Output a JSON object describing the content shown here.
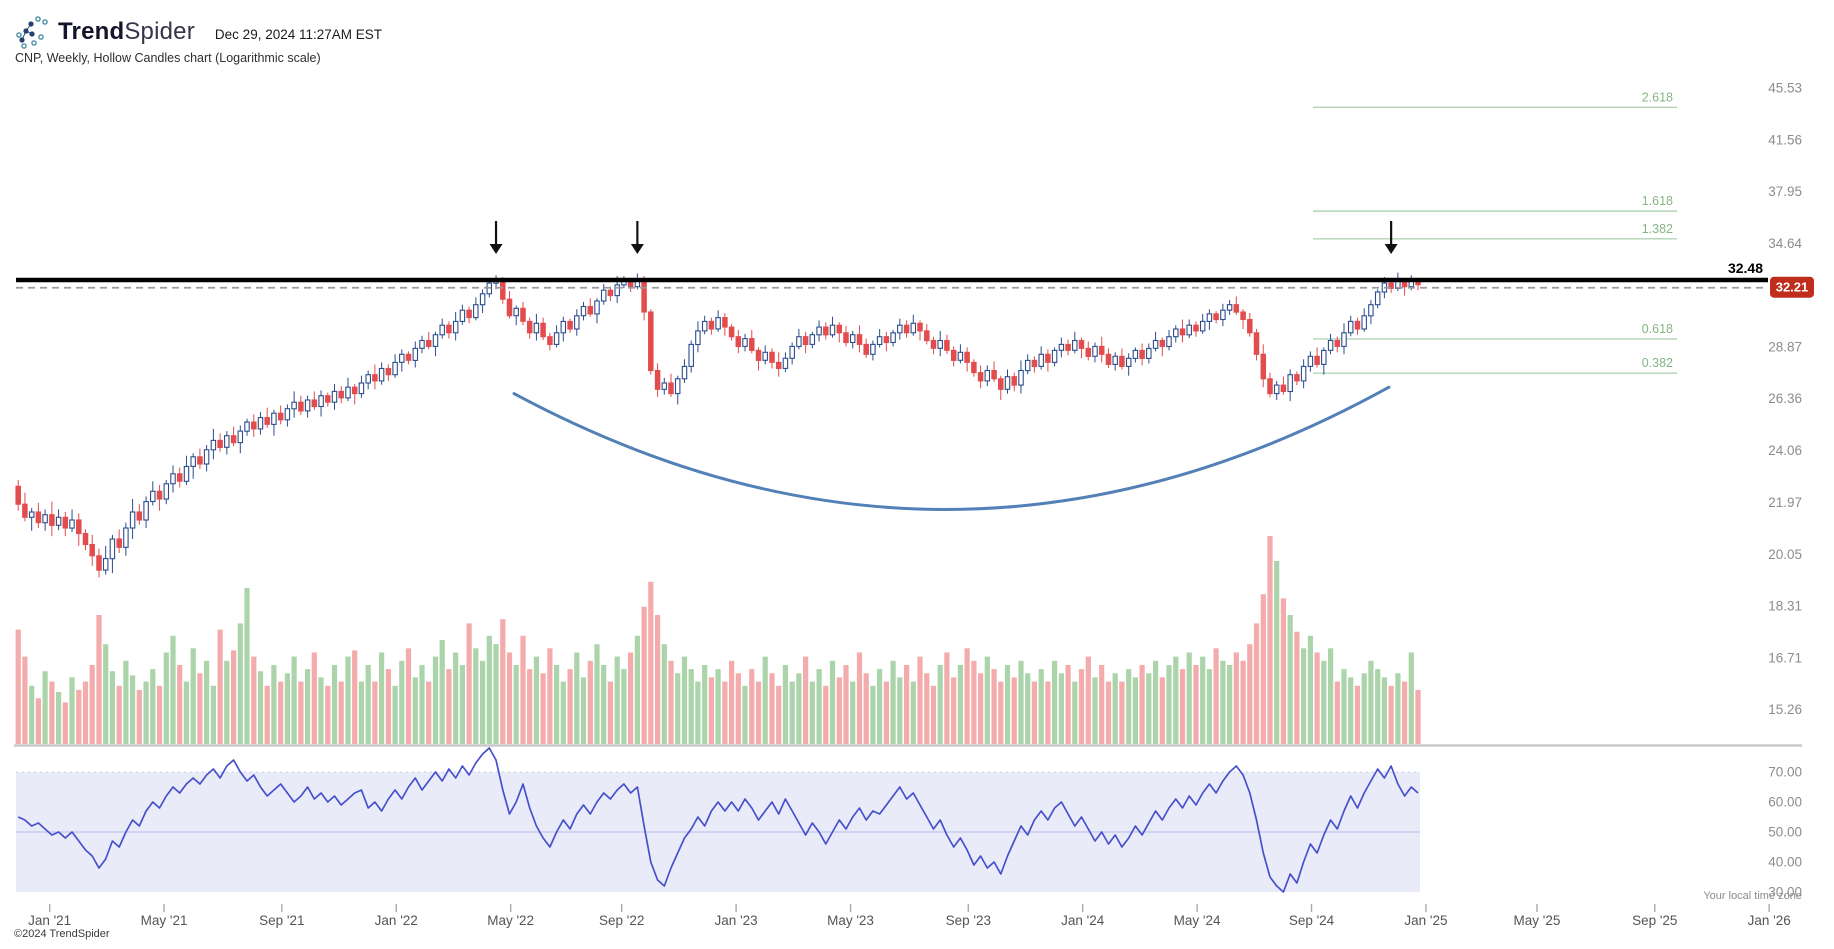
{
  "header": {
    "brand_bold": "Trend",
    "brand_light": "Spider",
    "timestamp": "Dec 29, 2024 11:27AM EST",
    "subtitle": "CNP, Weekly, Hollow Candles chart (Logarithmic scale)"
  },
  "footer": {
    "copyright": "©2024 TrendSpider",
    "timezone_note": "Your local time zone"
  },
  "colors": {
    "candle_up": "#2b4d8e",
    "candle_down": "#e24c4c",
    "vol_up": "#abd4ab",
    "vol_down": "#f3abab",
    "fib_line": "#b5d5b5",
    "fib_text": "#85b585",
    "rsi_line": "#4650cb",
    "rsi_band": "#e9ebf9",
    "rsi_grid": "#c3c7ea",
    "badge": "#bf2e1d",
    "resistance": "#000000",
    "dashed": "#9a9a9a",
    "axis_text": "#8c8c8c",
    "xaxis_text": "#555555",
    "arrow": "#111111",
    "cup": "#4a79b3",
    "baseline": "#c9c9c9"
  },
  "chart_data": [
    {
      "type": "candlestick",
      "title": "CNP, Weekly, Hollow Candles chart (Logarithmic scale)",
      "symbol": "CNP",
      "timeframe": "Weekly",
      "scale": "logarithmic",
      "first_open": 22.6,
      "closes": [
        21.9,
        21.4,
        21.6,
        21.2,
        21.5,
        21.1,
        21.4,
        21.0,
        21.3,
        20.8,
        20.4,
        20.0,
        19.5,
        19.9,
        20.6,
        20.3,
        21.0,
        21.6,
        21.3,
        22.0,
        22.4,
        22.1,
        22.7,
        23.1,
        22.8,
        23.4,
        23.8,
        23.5,
        24.1,
        24.5,
        24.2,
        24.7,
        24.4,
        24.9,
        25.3,
        25.0,
        25.5,
        25.2,
        25.7,
        25.4,
        25.9,
        26.2,
        25.8,
        26.3,
        26.0,
        26.5,
        26.2,
        26.7,
        26.4,
        26.9,
        26.6,
        27.1,
        27.5,
        27.2,
        27.8,
        27.5,
        28.1,
        28.5,
        28.2,
        28.8,
        29.2,
        28.9,
        29.5,
        30.0,
        29.6,
        30.2,
        30.8,
        30.4,
        31.1,
        31.7,
        32.3,
        32.4,
        31.4,
        30.5,
        30.9,
        30.2,
        29.6,
        30.1,
        29.4,
        29.0,
        29.6,
        30.2,
        29.8,
        30.5,
        31.0,
        30.6,
        31.3,
        31.9,
        31.6,
        32.2,
        32.4,
        32.1,
        32.45,
        30.7,
        27.7,
        26.8,
        27.1,
        26.6,
        27.3,
        27.9,
        29.0,
        29.7,
        30.2,
        29.8,
        30.4,
        29.9,
        29.4,
        28.9,
        29.3,
        28.7,
        28.2,
        28.6,
        28.1,
        27.8,
        28.3,
        28.9,
        29.4,
        29.0,
        29.5,
        29.9,
        29.5,
        30.0,
        29.6,
        29.1,
        29.5,
        29.0,
        28.5,
        29.0,
        29.4,
        29.1,
        29.6,
        30.0,
        29.6,
        30.1,
        29.7,
        29.2,
        28.8,
        29.2,
        28.7,
        28.2,
        28.6,
        28.1,
        27.6,
        27.2,
        27.7,
        27.3,
        26.8,
        27.4,
        27.0,
        27.7,
        28.2,
        27.9,
        28.5,
        28.1,
        28.7,
        29.0,
        28.7,
        29.2,
        28.8,
        28.4,
        28.9,
        28.5,
        28.0,
        28.4,
        27.9,
        28.3,
        28.7,
        28.3,
        28.8,
        29.2,
        28.9,
        29.4,
        29.8,
        29.5,
        30.0,
        29.7,
        30.2,
        30.6,
        30.3,
        30.8,
        31.1,
        30.7,
        30.3,
        29.6,
        28.5,
        27.3,
        26.6,
        27.0,
        26.7,
        27.5,
        27.2,
        27.9,
        28.4,
        28.0,
        28.7,
        29.2,
        28.9,
        29.6,
        30.2,
        29.8,
        30.5,
        31.1,
        31.8,
        32.3,
        32.0,
        32.45,
        32.1,
        32.4,
        32.21
      ],
      "wick_up": [
        0.25,
        0.45,
        0.15,
        0.35,
        0.2,
        0.5,
        0.3,
        0.2,
        0.4,
        0.25,
        0.15,
        0.35
      ],
      "wick_dn": [
        0.3,
        0.15,
        0.45,
        0.2,
        0.35,
        0.25,
        0.15,
        0.5,
        0.2,
        0.3,
        0.4,
        0.18
      ],
      "y_ticks": [
        45.53,
        41.56,
        37.95,
        34.64,
        28.87,
        26.36,
        24.06,
        21.97,
        20.05,
        18.31,
        16.71,
        15.26
      ],
      "x_ticks": [
        {
          "label": "Jan '21",
          "week": 5
        },
        {
          "label": "May '21",
          "week": 22
        },
        {
          "label": "Sep '21",
          "week": 39.5
        },
        {
          "label": "Jan '22",
          "week": 56.5
        },
        {
          "label": "May '22",
          "week": 73.5
        },
        {
          "label": "Sep '22",
          "week": 90
        },
        {
          "label": "Jan '23",
          "week": 107
        },
        {
          "label": "May '23",
          "week": 124
        },
        {
          "label": "Sep '23",
          "week": 141.5
        },
        {
          "label": "Jan '24",
          "week": 158.5
        },
        {
          "label": "May '24",
          "week": 175.5
        },
        {
          "label": "Sep '24",
          "week": 192.5
        },
        {
          "label": "Jan '25",
          "week": 209.5
        },
        {
          "label": "May '25",
          "week": 226
        },
        {
          "label": "Sep '25",
          "week": 243.5
        },
        {
          "label": "Jan '26",
          "week": 260.5
        }
      ],
      "annotations": {
        "resistance": {
          "price": 32.48,
          "label": "32.48"
        },
        "last_price": {
          "price": 32.21,
          "label": "32.21"
        },
        "fib_levels": [
          {
            "label": "2.618",
            "price": 44.0
          },
          {
            "label": "1.618",
            "price": 36.66
          },
          {
            "label": "1.382",
            "price": 34.92
          },
          {
            "label": "0.618",
            "price": 29.28
          },
          {
            "label": "0.382",
            "price": 27.57
          }
        ],
        "arrow_weeks": [
          71,
          92,
          204
        ],
        "cup": {
          "from": {
            "week": 74,
            "price": 26.6
          },
          "control": {
            "week": 139,
            "price": 17.6
          },
          "to": {
            "week": 204,
            "price": 26.9
          }
        }
      }
    },
    {
      "type": "bar",
      "name": "volume",
      "values": [
        55,
        42,
        28,
        22,
        35,
        30,
        25,
        20,
        32,
        26,
        30,
        38,
        62,
        48,
        35,
        28,
        40,
        33,
        26,
        30,
        36,
        28,
        44,
        52,
        38,
        30,
        46,
        34,
        40,
        28,
        55,
        40,
        45,
        58,
        75,
        42,
        35,
        28,
        38,
        30,
        34,
        42,
        30,
        36,
        44,
        32,
        28,
        38,
        30,
        42,
        45,
        30,
        38,
        30,
        44,
        36,
        28,
        40,
        46,
        32,
        38,
        30,
        42,
        50,
        36,
        44,
        38,
        58,
        46,
        40,
        52,
        48,
        60,
        44,
        38,
        52,
        36,
        42,
        34,
        46,
        38,
        30,
        36,
        44,
        32,
        40,
        48,
        38,
        30,
        42,
        36,
        44,
        52,
        66,
        78,
        62,
        48,
        40,
        34,
        42,
        36,
        30,
        38,
        32,
        36,
        30,
        40,
        34,
        28,
        36,
        30,
        42,
        34,
        28,
        38,
        30,
        34,
        42,
        30,
        36,
        28,
        40,
        32,
        38,
        30,
        44,
        34,
        28,
        36,
        30,
        40,
        32,
        38,
        30,
        42,
        34,
        28,
        38,
        44,
        32,
        38,
        46,
        40,
        34,
        42,
        36,
        30,
        38,
        32,
        40,
        34,
        30,
        36,
        30,
        40,
        34,
        38,
        30,
        36,
        42,
        32,
        38,
        30,
        34,
        30,
        36,
        32,
        38,
        34,
        40,
        32,
        38,
        42,
        36,
        44,
        38,
        42,
        36,
        46,
        40,
        38,
        44,
        40,
        48,
        58,
        72,
        100,
        88,
        70,
        62,
        54,
        46,
        52,
        44,
        40,
        46,
        30,
        36,
        32,
        28,
        34,
        40,
        36,
        32,
        28,
        34,
        30,
        44,
        26
      ]
    },
    {
      "type": "line",
      "name": "RSI",
      "band": [
        30,
        70
      ],
      "y_ticks": [
        70,
        60,
        50,
        40,
        30
      ],
      "values": [
        55,
        54,
        52,
        53,
        51,
        49,
        50,
        48,
        50,
        47,
        44,
        42,
        38,
        41,
        47,
        45,
        50,
        54,
        52,
        57,
        60,
        58,
        62,
        65,
        63,
        66,
        68,
        66,
        69,
        71,
        68,
        72,
        74,
        70,
        67,
        69,
        65,
        62,
        64,
        66,
        63,
        60,
        62,
        65,
        61,
        63,
        60,
        62,
        59,
        61,
        63,
        64,
        58,
        60,
        57,
        61,
        64,
        61,
        65,
        68,
        64,
        67,
        70,
        67,
        71,
        68,
        72,
        69,
        73,
        76,
        78,
        74,
        64,
        56,
        60,
        66,
        58,
        52,
        48,
        45,
        50,
        54,
        51,
        56,
        59,
        56,
        60,
        63,
        61,
        64,
        66,
        63,
        65,
        52,
        40,
        34,
        32,
        38,
        43,
        48,
        51,
        55,
        52,
        57,
        60,
        57,
        60,
        57,
        61,
        58,
        54,
        57,
        60,
        56,
        61,
        57,
        53,
        49,
        53,
        50,
        46,
        50,
        54,
        51,
        55,
        58,
        54,
        57,
        56,
        59,
        62,
        65,
        61,
        63,
        59,
        55,
        51,
        54,
        49,
        45,
        48,
        44,
        39,
        42,
        38,
        40,
        36,
        42,
        47,
        52,
        49,
        54,
        57,
        54,
        58,
        60,
        56,
        52,
        55,
        51,
        47,
        50,
        46,
        49,
        45,
        48,
        52,
        49,
        53,
        57,
        54,
        58,
        61,
        58,
        62,
        59,
        63,
        66,
        63,
        67,
        70,
        72,
        69,
        63,
        54,
        43,
        35,
        32,
        30,
        36,
        33,
        40,
        46,
        43,
        49,
        54,
        51,
        57,
        62,
        58,
        63,
        67,
        71,
        68,
        72,
        66,
        62,
        65,
        63
      ]
    }
  ]
}
